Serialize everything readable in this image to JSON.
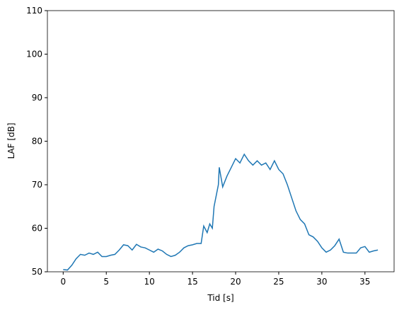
{
  "chart_data": {
    "type": "line",
    "x_label": "Tid [s]",
    "y_label": "LAF [dB]",
    "x": [
      0,
      0.5,
      1,
      1.5,
      2,
      2.5,
      3,
      3.5,
      4,
      4.5,
      5,
      5.5,
      6,
      6.5,
      7,
      7.5,
      8,
      8.5,
      9,
      9.5,
      10,
      10.5,
      11,
      11.5,
      12,
      12.5,
      13,
      13.5,
      14,
      14.5,
      15,
      15.5,
      16,
      16.3,
      16.7,
      17,
      17.3,
      17.5,
      18,
      18.1,
      18.5,
      19,
      19.5,
      20,
      20.5,
      21,
      21.5,
      22,
      22.5,
      23,
      23.5,
      24,
      24.5,
      25,
      25.5,
      26,
      26.5,
      27,
      27.5,
      28,
      28.5,
      29,
      29.5,
      30,
      30.5,
      31,
      31.5,
      32,
      32.5,
      33,
      33.5,
      34,
      34.5,
      35,
      35.5,
      36,
      36.5
    ],
    "series": [
      {
        "name": "LAF",
        "color": "#1f77b4",
        "values": [
          50.5,
          50.4,
          51.5,
          53,
          54,
          53.8,
          54.3,
          54,
          54.5,
          53.5,
          53.5,
          53.8,
          54,
          55,
          56.2,
          56,
          55,
          56.3,
          55.7,
          55.5,
          55,
          54.5,
          55.2,
          54.8,
          54,
          53.5,
          53.8,
          54.5,
          55.5,
          56,
          56.2,
          56.5,
          56.5,
          60.5,
          59,
          61,
          60,
          65,
          70,
          74,
          69.5,
          72,
          74,
          76,
          75,
          77,
          75.5,
          74.5,
          75.5,
          74.5,
          75,
          73.5,
          75.5,
          73.5,
          72.5,
          70,
          67,
          64,
          62,
          61,
          58.5,
          58,
          57,
          55.5,
          54.5,
          55,
          56,
          57.5,
          54.5,
          54.3,
          54.3,
          54.3,
          55.5,
          55.8,
          54.5,
          54.8,
          55
        ]
      }
    ],
    "xlim": [
      -1.83,
      38.38
    ],
    "xticks": [
      0,
      5,
      10,
      15,
      20,
      25,
      30,
      35
    ],
    "ylim": [
      50,
      110
    ],
    "yticks": [
      50,
      60,
      70,
      80,
      90,
      100,
      110
    ]
  }
}
